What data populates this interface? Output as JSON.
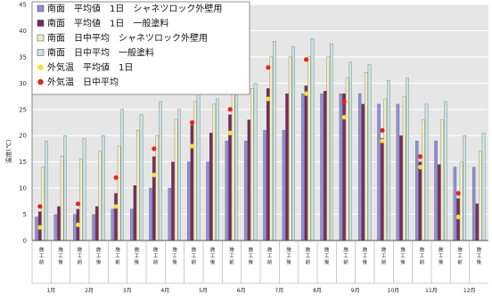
{
  "chart_data": {
    "type": "bar",
    "ylabel": "温度(℃)",
    "ylim": [
      0,
      45
    ],
    "yticks": [
      0,
      5,
      10,
      15,
      20,
      25,
      30,
      35,
      40,
      45
    ],
    "grid": true,
    "legend_position": "top-left",
    "months": [
      "1月",
      "2月",
      "3月",
      "4月",
      "5月",
      "6月",
      "7月",
      "8月",
      "9月",
      "10月",
      "11月",
      "12月"
    ],
    "groups": [
      {
        "month": "1月",
        "sub": [
          "施工前",
          "施工後"
        ]
      },
      {
        "month": "2月",
        "sub": [
          "施工前",
          "施工後"
        ]
      },
      {
        "month": "3月",
        "sub": [
          "施工前",
          "施工後"
        ]
      },
      {
        "month": "4月",
        "sub": [
          "施工前",
          "施工後"
        ]
      },
      {
        "month": "5月",
        "sub": [
          "施工前",
          "施工後"
        ]
      },
      {
        "month": "6月",
        "sub": [
          "施工前",
          "施工後"
        ]
      },
      {
        "month": "7月",
        "sub": [
          "施工前",
          "施工後"
        ]
      },
      {
        "month": "8月",
        "sub": [
          "施工前",
          "施工後"
        ]
      },
      {
        "month": "9月",
        "sub": [
          "施工前",
          "施工後"
        ]
      },
      {
        "month": "10月",
        "sub": [
          "施工前",
          "施工後"
        ]
      },
      {
        "month": "11月",
        "sub": [
          "施工前",
          "施工後"
        ]
      },
      {
        "month": "12月",
        "sub": [
          "施工前",
          "施工後"
        ]
      }
    ],
    "series": [
      {
        "name": "南面　平均値　1日　シャネツロック外壁用",
        "kind": "bar",
        "color": "#8f8fd8",
        "values": [
          4.5,
          5,
          5,
          5,
          6,
          6,
          10,
          10,
          15,
          15,
          19,
          19,
          21,
          21,
          28,
          28,
          28,
          28,
          26,
          26,
          19,
          19,
          14,
          14
        ]
      },
      {
        "name": "南面　平均値　1日　一般塗料",
        "kind": "bar",
        "color": "#7a2a5a",
        "values": [
          5.5,
          6.5,
          6,
          6.5,
          9,
          10.5,
          16,
          15,
          22,
          20.5,
          24,
          23,
          29,
          28,
          29.5,
          28.5,
          28,
          26,
          19.5,
          20,
          15,
          14.5,
          8,
          7
        ]
      },
      {
        "name": "南面　日中平均　シャネツロック外壁用",
        "kind": "bar",
        "color": "#f0ecc8",
        "values": [
          14,
          16,
          15.5,
          17,
          18,
          21,
          20,
          23,
          26.5,
          26,
          29,
          29,
          35,
          35,
          35,
          35,
          31,
          32,
          27,
          27.5,
          23,
          23,
          15,
          17
        ]
      },
      {
        "name": "南面　日中平均　一般塗料",
        "kind": "bar",
        "color": "#c9e2e2",
        "values": [
          19,
          20,
          19.5,
          20,
          25,
          24,
          26.5,
          25,
          30,
          27,
          31,
          30,
          38,
          37,
          38.5,
          37.5,
          34,
          33.5,
          30.5,
          31,
          26,
          26.5,
          20,
          20.5
        ]
      },
      {
        "name": "外気温　平均値　1日",
        "kind": "point",
        "color": "#f5e03a",
        "values": [
          2.5,
          null,
          3,
          null,
          6.5,
          null,
          12.5,
          null,
          18,
          null,
          20.5,
          null,
          27,
          null,
          28,
          null,
          23.5,
          null,
          19,
          null,
          14,
          null,
          4.5,
          null
        ]
      },
      {
        "name": "外気温　日中平均",
        "kind": "point",
        "color": "#e8231a",
        "values": [
          6.5,
          null,
          7,
          null,
          12,
          null,
          17.5,
          null,
          22.5,
          null,
          25,
          null,
          33,
          null,
          34.5,
          null,
          26.5,
          null,
          21,
          null,
          16,
          null,
          9,
          null
        ]
      }
    ]
  }
}
